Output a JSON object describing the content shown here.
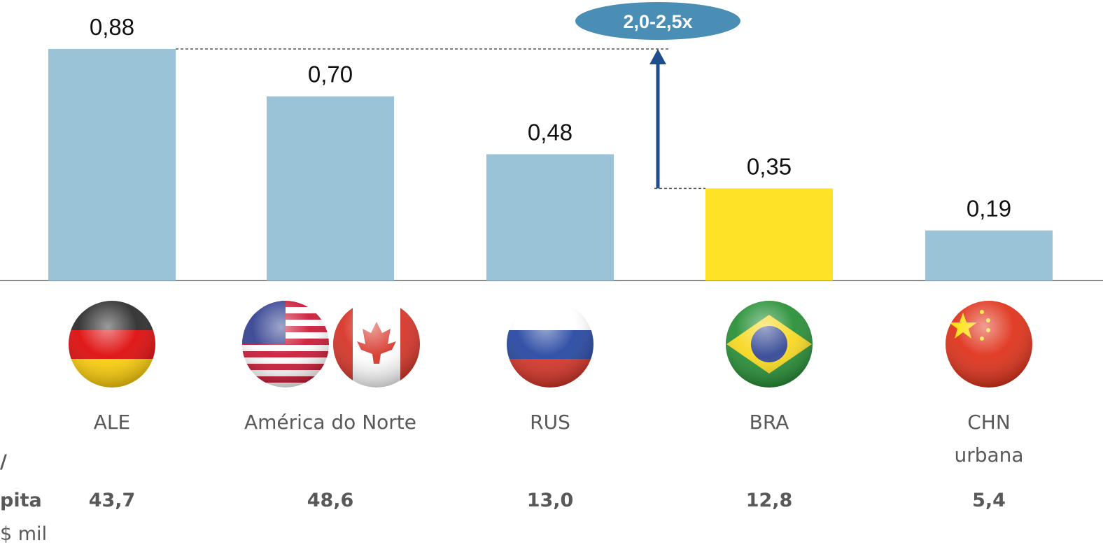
{
  "chart_data": {
    "type": "bar",
    "categories": [
      "ALE",
      "América do Norte",
      "RUS",
      "BRA",
      "CHN\nurbana"
    ],
    "values": [
      0.88,
      0.7,
      0.48,
      0.35,
      0.19
    ],
    "value_labels": [
      "0,88",
      "0,70",
      "0,48",
      "0,35",
      "0,19"
    ],
    "colors": [
      "#9ac3d8",
      "#9ac3d8",
      "#9ac3d8",
      "#fde227",
      "#9ac3d8"
    ],
    "annotation": "2,0-2,5x",
    "row_label": [
      "/",
      "pita",
      "$ mil"
    ],
    "per_capita": [
      "43,7",
      "48,6",
      "13,0",
      "12,8",
      "5,4"
    ]
  }
}
